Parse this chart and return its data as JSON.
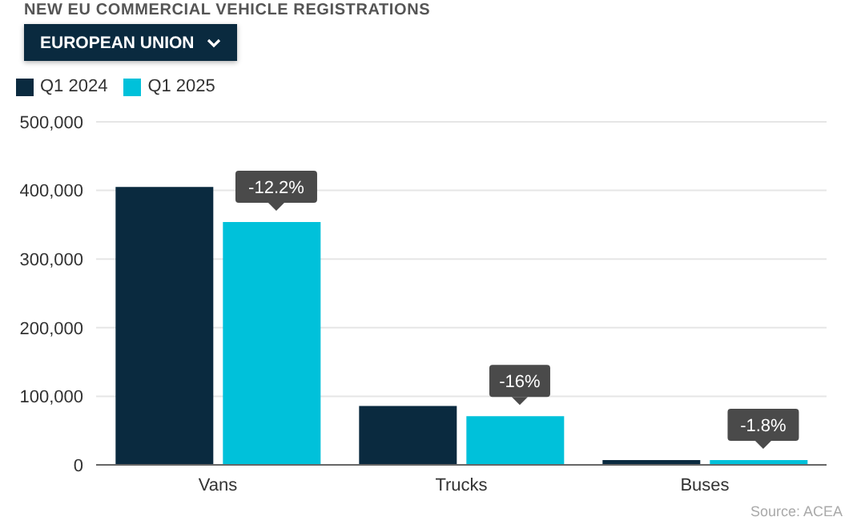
{
  "chart_data": {
    "type": "bar",
    "title": "NEW EU COMMERCIAL VEHICLE REGISTRATIONS",
    "subtitle": "EUROPEAN UNION",
    "categories": [
      "Vans",
      "Trucks",
      "Buses"
    ],
    "series": [
      {
        "name": "Q1 2024",
        "color": "#0a2a3f",
        "values": [
          405000,
          86000,
          7000
        ]
      },
      {
        "name": "Q1 2025",
        "color": "#00c1da",
        "values": [
          354000,
          71000,
          7000
        ]
      }
    ],
    "ylim": [
      0,
      500000
    ],
    "yticks": [
      0,
      {
        "value": 100000,
        "label": "100,000"
      },
      {
        "value": 200000,
        "label": "200,000"
      },
      {
        "value": 300000,
        "label": "300,000"
      },
      {
        "value": 400000,
        "label": "400,000"
      },
      {
        "value": 500000,
        "label": "500,000"
      }
    ],
    "grid": "y",
    "legend": "top left",
    "annotations": [
      {
        "text": "-12.2%",
        "x": "Vans",
        "y": 354000
      },
      {
        "text": "-16%",
        "x": "Trucks",
        "y": 71000
      },
      {
        "text": "-1.8%",
        "x": "Buses",
        "y": 7000
      },
      "Source: ACEA"
    ]
  }
}
